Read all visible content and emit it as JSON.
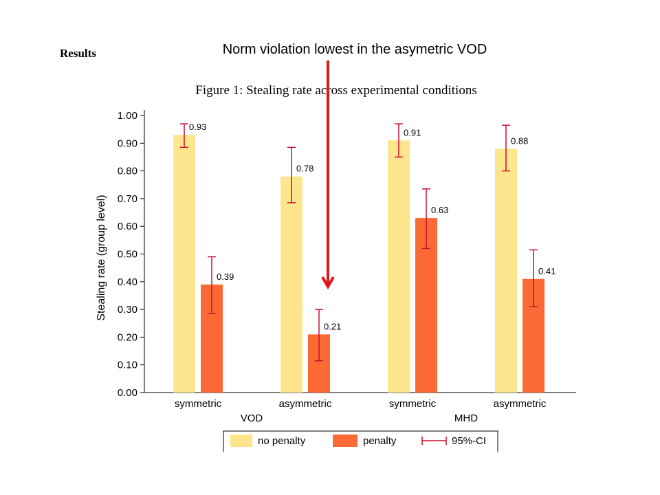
{
  "slide": {
    "heading": "Results",
    "annotation": "Norm violation lowest in the asymetric VOD"
  },
  "colors": {
    "no_penalty": "#fde58e",
    "penalty": "#fb6a35",
    "ci": "#c8102e",
    "arrow": "#e2161b",
    "axis": "#000000"
  },
  "chart_data": {
    "type": "bar",
    "title": "Figure 1: Stealing rate across experimental conditions",
    "ylabel": "Stealing rate (group level)",
    "xlabel": "",
    "ylim": [
      0,
      1
    ],
    "yticks": [
      "0.00",
      "0.10",
      "0.20",
      "0.30",
      "0.40",
      "0.50",
      "0.60",
      "0.70",
      "0.80",
      "0.90",
      "1.00"
    ],
    "categories": [
      "symmetric",
      "asymmetric",
      "symmetric",
      "asymmetric"
    ],
    "groups": [
      {
        "label": "VOD",
        "categories": [
          0,
          1
        ]
      },
      {
        "label": "MHD",
        "categories": [
          2,
          3
        ]
      }
    ],
    "series": [
      {
        "name": "no penalty",
        "values": [
          0.93,
          0.78,
          0.91,
          0.88
        ],
        "labels": [
          "0.93",
          "0.78",
          "0.91",
          "0.88"
        ],
        "ci_low": [
          0.885,
          0.685,
          0.85,
          0.8
        ],
        "ci_high": [
          0.97,
          0.885,
          0.97,
          0.965
        ]
      },
      {
        "name": "penalty",
        "values": [
          0.39,
          0.21,
          0.63,
          0.41
        ],
        "labels": [
          "0.39",
          "0.21",
          "0.63",
          "0.41"
        ],
        "ci_low": [
          0.285,
          0.115,
          0.52,
          0.31
        ],
        "ci_high": [
          0.49,
          0.3,
          0.735,
          0.515
        ]
      }
    ],
    "legend": {
      "placement": "bottom",
      "entries": [
        "no penalty",
        "penalty",
        "95%-CI"
      ]
    },
    "grid": false
  }
}
